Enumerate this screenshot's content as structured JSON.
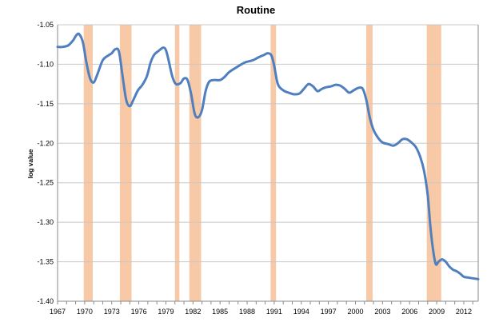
{
  "chart_data": {
    "type": "line",
    "title": "Routine",
    "xlabel": "",
    "ylabel": "log value",
    "xlim": [
      1967,
      2013.6
    ],
    "ylim": [
      -1.4,
      -1.05
    ],
    "grid": true,
    "x_ticks": [
      "1967",
      "1970",
      "1973",
      "1976",
      "1979",
      "1982",
      "1985",
      "1988",
      "1991",
      "1994",
      "1997",
      "2000",
      "2003",
      "2006",
      "2009",
      "2012"
    ],
    "y_ticks": [
      "-1.05",
      "-1.10",
      "-1.15",
      "-1.20",
      "-1.25",
      "-1.30",
      "-1.35",
      "-1.40"
    ],
    "recession_shading": [
      {
        "start": 1969.9,
        "end": 1970.9
      },
      {
        "start": 1973.9,
        "end": 1975.2
      },
      {
        "start": 1980.0,
        "end": 1980.5
      },
      {
        "start": 1981.6,
        "end": 1982.9
      },
      {
        "start": 1990.6,
        "end": 1991.2
      },
      {
        "start": 2001.2,
        "end": 2001.9
      },
      {
        "start": 2007.9,
        "end": 2009.5
      }
    ],
    "shading_color": "#f8c9a6",
    "series": [
      {
        "color": "#4f7fbf",
        "x": [
          1967.0,
          1967.6,
          1968.2,
          1968.7,
          1969.1,
          1969.4,
          1969.8,
          1970.2,
          1970.6,
          1971.0,
          1971.4,
          1972.0,
          1972.6,
          1973.0,
          1973.4,
          1973.8,
          1974.2,
          1974.6,
          1975.0,
          1975.4,
          1975.9,
          1976.4,
          1976.9,
          1977.3,
          1977.7,
          1978.2,
          1978.7,
          1979.0,
          1979.3,
          1979.7,
          1980.1,
          1980.6,
          1981.0,
          1981.4,
          1981.8,
          1982.2,
          1982.6,
          1983.0,
          1983.4,
          1983.8,
          1984.3,
          1985.0,
          1985.5,
          1986.0,
          1986.8,
          1987.7,
          1988.6,
          1989.3,
          1989.9,
          1990.3,
          1990.7,
          1991.0,
          1991.4,
          1992.0,
          1992.6,
          1993.2,
          1993.8,
          1994.3,
          1994.8,
          1995.3,
          1995.8,
          1996.3,
          1996.8,
          1997.3,
          1997.8,
          1998.3,
          1998.8,
          1999.3,
          1999.8,
          2000.3,
          2000.8,
          2001.2,
          2001.6,
          2002.0,
          2002.5,
          2003.0,
          2003.6,
          2004.2,
          2004.7,
          2005.2,
          2005.7,
          2006.2,
          2006.7,
          2007.2,
          2007.6,
          2008.0,
          2008.3,
          2008.6,
          2008.9,
          2009.2,
          2009.6,
          2010.0,
          2010.4,
          2010.8,
          2011.2,
          2011.6,
          2012.0,
          2012.5,
          2013.0,
          2013.6
        ],
        "y": [
          -1.078,
          -1.078,
          -1.076,
          -1.07,
          -1.063,
          -1.062,
          -1.072,
          -1.098,
          -1.118,
          -1.123,
          -1.113,
          -1.095,
          -1.089,
          -1.086,
          -1.081,
          -1.084,
          -1.115,
          -1.145,
          -1.153,
          -1.145,
          -1.133,
          -1.126,
          -1.115,
          -1.098,
          -1.088,
          -1.083,
          -1.079,
          -1.082,
          -1.095,
          -1.115,
          -1.125,
          -1.124,
          -1.118,
          -1.12,
          -1.138,
          -1.163,
          -1.167,
          -1.158,
          -1.134,
          -1.122,
          -1.12,
          -1.12,
          -1.116,
          -1.11,
          -1.104,
          -1.098,
          -1.095,
          -1.091,
          -1.088,
          -1.086,
          -1.089,
          -1.102,
          -1.125,
          -1.133,
          -1.136,
          -1.138,
          -1.137,
          -1.131,
          -1.125,
          -1.128,
          -1.134,
          -1.131,
          -1.129,
          -1.128,
          -1.126,
          -1.127,
          -1.131,
          -1.136,
          -1.133,
          -1.13,
          -1.131,
          -1.145,
          -1.168,
          -1.183,
          -1.193,
          -1.199,
          -1.201,
          -1.203,
          -1.2,
          -1.195,
          -1.195,
          -1.199,
          -1.205,
          -1.218,
          -1.235,
          -1.265,
          -1.305,
          -1.335,
          -1.353,
          -1.35,
          -1.347,
          -1.35,
          -1.356,
          -1.36,
          -1.362,
          -1.365,
          -1.369,
          -1.37,
          -1.371,
          -1.372
        ]
      }
    ]
  }
}
